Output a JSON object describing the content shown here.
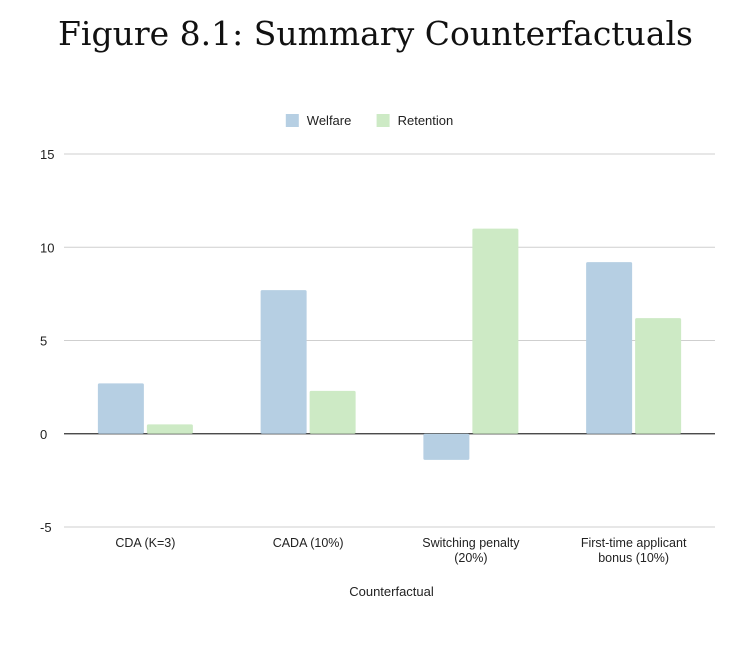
{
  "title": "Figure 8.1: Summary Counterfactuals",
  "chart_data": {
    "type": "bar",
    "title": "Figure 8.1: Summary Counterfactuals",
    "xlabel": "Counterfactual",
    "ylabel": "",
    "ylim": [
      -5,
      15
    ],
    "yticks": [
      -5,
      0,
      5,
      10,
      15
    ],
    "grid": true,
    "legend_position": "top-center",
    "categories": [
      [
        "CDA (K=3)"
      ],
      [
        "CADA (10%)"
      ],
      [
        "Switching penalty",
        "(20%)"
      ],
      [
        "First-time applicant",
        "bonus (10%)"
      ]
    ],
    "series": [
      {
        "name": "Welfare",
        "color": "#b6cfe3",
        "values": [
          2.7,
          7.7,
          -1.4,
          9.2
        ]
      },
      {
        "name": "Retention",
        "color": "#cdeac5",
        "values": [
          0.5,
          2.3,
          11.0,
          6.2
        ]
      }
    ]
  }
}
